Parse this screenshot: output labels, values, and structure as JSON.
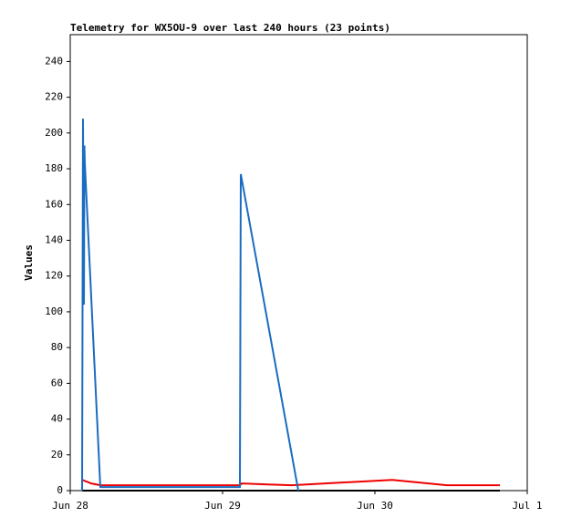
{
  "chart_data": {
    "type": "line",
    "title": "Telemetry for WX5OU-9 over last 240 hours (23 points)",
    "y_label": "Values",
    "xlim": [
      0,
      72
    ],
    "ylim": [
      0,
      255
    ],
    "xticks": [
      {
        "value": 0,
        "label": "Jun 28"
      },
      {
        "value": 24,
        "label": "Jun 29"
      },
      {
        "value": 48,
        "label": "Jun 30"
      },
      {
        "value": 72,
        "label": "Jul 1"
      }
    ],
    "yticks": [
      0,
      20,
      40,
      60,
      80,
      100,
      120,
      140,
      160,
      180,
      200,
      220,
      240
    ],
    "series": [
      {
        "color": "#000000",
        "x": [
          1.87,
          67.69
        ],
        "values": [
          0,
          0
        ]
      },
      {
        "color": "#ee0000",
        "x": [
          1.87,
          3.31,
          4.74,
          26.73,
          27.02,
          30.61,
          34.92,
          50.73,
          59.36,
          67.69
        ],
        "values": [
          6,
          4,
          3,
          3,
          4,
          3.5,
          3,
          6,
          3,
          3
        ]
      },
      {
        "color": "#1a6cc0",
        "x": [
          1.87,
          2.01,
          2.16,
          2.23,
          2.3,
          4.74,
          26.73,
          26.87,
          35.93
        ],
        "values": [
          0,
          208,
          104,
          193,
          183,
          2,
          2,
          177,
          0
        ]
      }
    ]
  }
}
